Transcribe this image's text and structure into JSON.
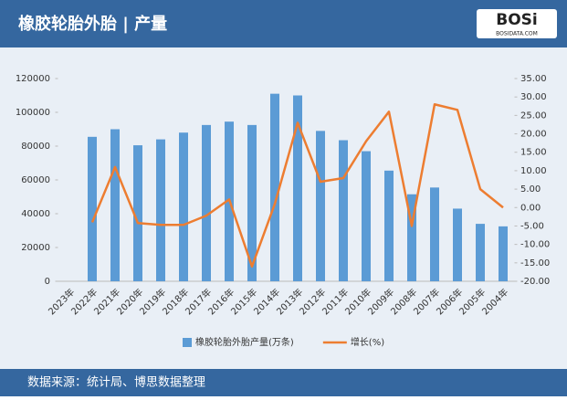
{
  "header": {
    "title": "橡胶轮胎外胎 | 产量",
    "logo": "BOSi",
    "logo_sub": "BOSIDATA.COM"
  },
  "chart_data": {
    "type": "bar-line",
    "categories": [
      "2023年",
      "2022年",
      "2021年",
      "2020年",
      "2019年",
      "2018年",
      "2017年",
      "2016年",
      "2015年",
      "2014年",
      "2013年",
      "2012年",
      "2011年",
      "2010年",
      "2009年",
      "2008年",
      "2007年",
      "2006年",
      "2005年",
      "2004年"
    ],
    "series": [
      {
        "name": "橡胶轮胎外胎产量(万条)",
        "type": "bar",
        "color": "#5b9bd5",
        "values": [
          null,
          85500,
          90000,
          80500,
          84000,
          88000,
          92500,
          94500,
          92500,
          111000,
          110000,
          89000,
          83500,
          77000,
          65500,
          51500,
          55500,
          43000,
          34000,
          32500
        ]
      },
      {
        "name": "增长(%)",
        "type": "line",
        "axis": "y2",
        "color": "#ed7d31",
        "values": [
          null,
          -4,
          11,
          -4.2,
          -4.7,
          -4.7,
          -2.2,
          2.2,
          -16,
          1,
          23,
          7,
          8,
          18,
          26,
          -5,
          28,
          26.5,
          5,
          0
        ]
      }
    ],
    "ylim": [
      0,
      120000
    ],
    "yticks": [
      0,
      20000,
      40000,
      60000,
      80000,
      100000,
      120000
    ],
    "y2lim": [
      -20,
      35
    ],
    "y2ticks": [
      {
        "value": -20,
        "label": "-20.00"
      },
      {
        "value": -15,
        "label": "-15.00"
      },
      {
        "value": -10,
        "label": "-10.00"
      },
      {
        "value": -5,
        "label": "-5.00"
      },
      {
        "value": 0,
        "label": "0.00"
      },
      {
        "value": 5,
        "label": "5.00"
      },
      {
        "value": 10,
        "label": "10.00"
      },
      {
        "value": 15,
        "label": "15.00"
      },
      {
        "value": 20,
        "label": "20.00"
      },
      {
        "value": 25,
        "label": "25.00"
      },
      {
        "value": 30,
        "label": "30.00"
      },
      {
        "value": 35,
        "label": "35.00"
      }
    ],
    "legend": "bottom"
  },
  "footer": {
    "source": "数据来源：统计局、博思数据整理"
  }
}
